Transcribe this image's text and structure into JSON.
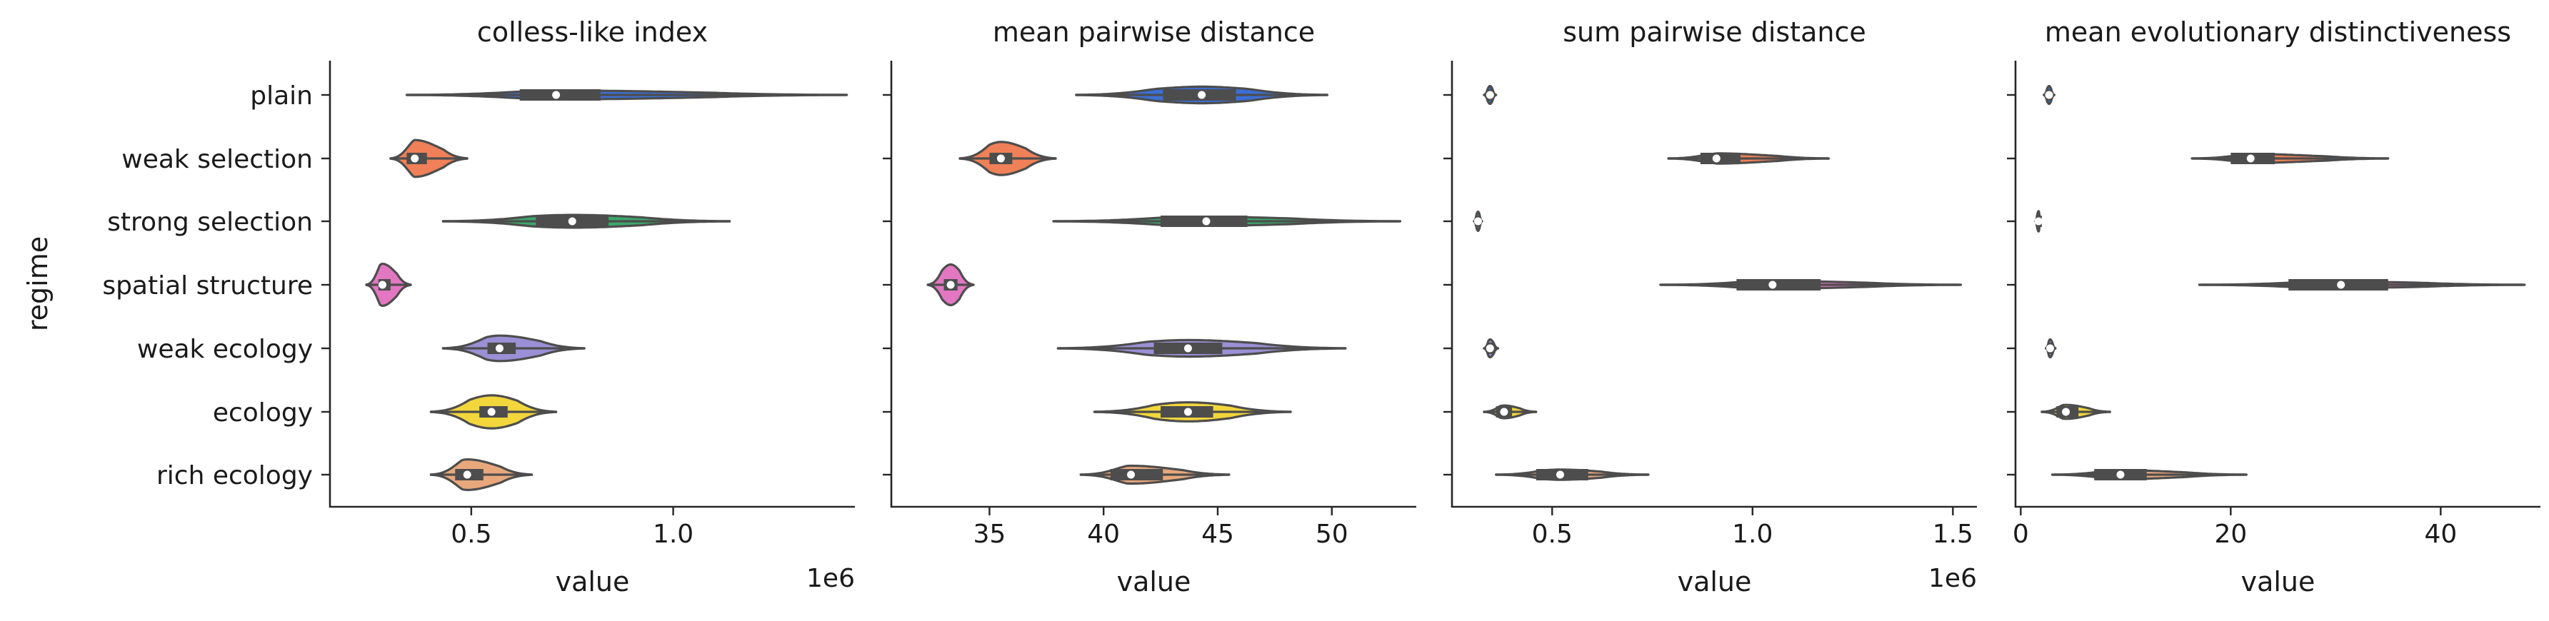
{
  "figure": {
    "ylabel": "regime",
    "categories": [
      "plain",
      "weak selection",
      "strong selection",
      "spatial structure",
      "weak ecology",
      "ecology",
      "rich ecology"
    ],
    "palette": [
      "#4c72b0",
      "#dd8452",
      "#55a868",
      "#c44e52",
      "#8172b3",
      "#937860",
      "#da8bc3"
    ]
  },
  "chart_data": [
    {
      "type": "violin",
      "title": "colless-like index",
      "xlabel": "value",
      "offset_label": "1e6",
      "xlim": [
        0.15,
        1.45
      ],
      "xticks": [
        0.5,
        1.0
      ],
      "xtick_labels": [
        "0.5",
        "1.0"
      ],
      "categories": [
        "plain",
        "weak selection",
        "strong selection",
        "spatial structure",
        "weak ecology",
        "ecology",
        "rich ecology"
      ],
      "series": [
        {
          "fill": "#3b6fd6",
          "min": 0.34,
          "q1": 0.62,
          "median": 0.71,
          "q3": 0.82,
          "max": 1.43,
          "half": 0.07
        },
        {
          "fill": "#f08057",
          "min": 0.3,
          "q1": 0.34,
          "median": 0.36,
          "q3": 0.39,
          "max": 0.49,
          "half": 0.29
        },
        {
          "fill": "#3aa86b",
          "min": 0.43,
          "q1": 0.66,
          "median": 0.75,
          "q3": 0.84,
          "max": 1.14,
          "half": 0.1
        },
        {
          "fill": "#e377c2",
          "min": 0.24,
          "q1": 0.27,
          "median": 0.28,
          "q3": 0.3,
          "max": 0.35,
          "half": 0.33
        },
        {
          "fill": "#9b8fd6",
          "min": 0.43,
          "q1": 0.54,
          "median": 0.57,
          "q3": 0.61,
          "max": 0.78,
          "half": 0.2
        },
        {
          "fill": "#f2d63b",
          "min": 0.4,
          "q1": 0.52,
          "median": 0.55,
          "q3": 0.59,
          "max": 0.71,
          "half": 0.26
        },
        {
          "fill": "#e8a87c",
          "min": 0.4,
          "q1": 0.46,
          "median": 0.49,
          "q3": 0.53,
          "max": 0.65,
          "half": 0.24
        }
      ]
    },
    {
      "type": "violin",
      "title": "mean pairwise distance",
      "xlabel": "value",
      "offset_label": "",
      "xlim": [
        30.7,
        53.7
      ],
      "xticks": [
        35,
        40,
        45,
        50
      ],
      "xtick_labels": [
        "35",
        "40",
        "45",
        "50"
      ],
      "categories": [
        "plain",
        "weak selection",
        "strong selection",
        "spatial structure",
        "weak ecology",
        "ecology",
        "rich ecology"
      ],
      "series": [
        {
          "fill": "#3b6fd6",
          "min": 38.8,
          "q1": 42.6,
          "median": 44.3,
          "q3": 45.8,
          "max": 49.8,
          "half": 0.13
        },
        {
          "fill": "#f08057",
          "min": 33.7,
          "q1": 35.0,
          "median": 35.5,
          "q3": 36.0,
          "max": 37.9,
          "half": 0.26
        },
        {
          "fill": "#3aa86b",
          "min": 37.8,
          "q1": 42.5,
          "median": 44.5,
          "q3": 46.3,
          "max": 53.0,
          "half": 0.07
        },
        {
          "fill": "#e377c2",
          "min": 32.3,
          "q1": 33.0,
          "median": 33.3,
          "q3": 33.6,
          "max": 34.3,
          "half": 0.32
        },
        {
          "fill": "#9b8fd6",
          "min": 38.0,
          "q1": 42.2,
          "median": 43.7,
          "q3": 45.2,
          "max": 50.6,
          "half": 0.13
        },
        {
          "fill": "#f2d63b",
          "min": 39.6,
          "q1": 42.5,
          "median": 43.7,
          "q3": 44.8,
          "max": 48.2,
          "half": 0.15
        },
        {
          "fill": "#e8a87c",
          "min": 39.0,
          "q1": 40.3,
          "median": 41.2,
          "q3": 42.6,
          "max": 45.5,
          "half": 0.14
        }
      ]
    },
    {
      "type": "violin",
      "title": "sum pairwise distance",
      "xlabel": "value",
      "offset_label": "1e6",
      "xlim": [
        0.25,
        1.56
      ],
      "xticks": [
        0.5,
        1.0,
        1.5
      ],
      "xtick_labels": [
        "0.5",
        "1.0",
        "1.5"
      ],
      "categories": [
        "plain",
        "weak selection",
        "strong selection",
        "spatial structure",
        "weak ecology",
        "ecology",
        "rich ecology"
      ],
      "series": [
        {
          "fill": "#3b6fd6",
          "min": 0.33,
          "q1": 0.34,
          "median": 0.345,
          "q3": 0.35,
          "max": 0.36,
          "half": 0.14
        },
        {
          "fill": "#f08057",
          "min": 0.79,
          "q1": 0.87,
          "median": 0.91,
          "q3": 0.97,
          "max": 1.19,
          "half": 0.08
        },
        {
          "fill": "#3aa86b",
          "min": 0.305,
          "q1": 0.31,
          "median": 0.315,
          "q3": 0.32,
          "max": 0.325,
          "half": 0.15
        },
        {
          "fill": "#e377c2",
          "min": 0.77,
          "q1": 0.96,
          "median": 1.05,
          "q3": 1.17,
          "max": 1.52,
          "half": 0.06
        },
        {
          "fill": "#9b8fd6",
          "min": 0.33,
          "q1": 0.34,
          "median": 0.345,
          "q3": 0.355,
          "max": 0.365,
          "half": 0.14
        },
        {
          "fill": "#f2d63b",
          "min": 0.33,
          "q1": 0.36,
          "median": 0.38,
          "q3": 0.4,
          "max": 0.46,
          "half": 0.1
        },
        {
          "fill": "#e8a87c",
          "min": 0.36,
          "q1": 0.46,
          "median": 0.52,
          "q3": 0.59,
          "max": 0.74,
          "half": 0.08
        }
      ]
    },
    {
      "type": "violin",
      "title": "mean evolutionary distinctiveness",
      "xlabel": "value",
      "offset_label": "",
      "xlim": [
        -0.5,
        49.5
      ],
      "xticks": [
        0,
        20,
        40
      ],
      "xtick_labels": [
        "0",
        "20",
        "40"
      ],
      "categories": [
        "plain",
        "weak selection",
        "strong selection",
        "spatial structure",
        "weak ecology",
        "ecology",
        "rich ecology"
      ],
      "series": [
        {
          "fill": "#3b6fd6",
          "min": 2.2,
          "q1": 2.5,
          "median": 2.7,
          "q3": 2.9,
          "max": 3.2,
          "half": 0.14
        },
        {
          "fill": "#f08057",
          "min": 16.3,
          "q1": 20.0,
          "median": 21.9,
          "q3": 24.2,
          "max": 35.0,
          "half": 0.07
        },
        {
          "fill": "#3aa86b",
          "min": 1.4,
          "q1": 1.6,
          "median": 1.7,
          "q3": 1.8,
          "max": 1.9,
          "half": 0.16
        },
        {
          "fill": "#e377c2",
          "min": 17.0,
          "q1": 25.5,
          "median": 30.5,
          "q3": 35.0,
          "max": 48.0,
          "half": 0.05
        },
        {
          "fill": "#9b8fd6",
          "min": 2.4,
          "q1": 2.6,
          "median": 2.8,
          "q3": 3.0,
          "max": 3.3,
          "half": 0.14
        },
        {
          "fill": "#f2d63b",
          "min": 2.0,
          "q1": 3.4,
          "median": 4.3,
          "q3": 5.5,
          "max": 8.5,
          "half": 0.11
        },
        {
          "fill": "#e8a87c",
          "min": 3.0,
          "q1": 7.0,
          "median": 9.5,
          "q3": 12.0,
          "max": 21.5,
          "half": 0.07
        }
      ]
    }
  ]
}
